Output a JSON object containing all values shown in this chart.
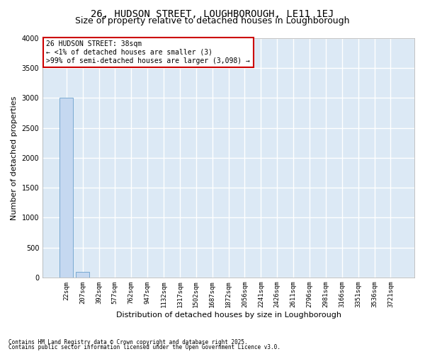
{
  "title": "26, HUDSON STREET, LOUGHBOROUGH, LE11 1EJ",
  "subtitle": "Size of property relative to detached houses in Loughborough",
  "xlabel": "Distribution of detached houses by size in Loughborough",
  "ylabel": "Number of detached properties",
  "annotation_lines": [
    "26 HUDSON STREET: 38sqm",
    "← <1% of detached houses are smaller (3)",
    ">99% of semi-detached houses are larger (3,098) →"
  ],
  "footer_lines": [
    "Contains HM Land Registry data © Crown copyright and database right 2025.",
    "Contains public sector information licensed under the Open Government Licence v3.0."
  ],
  "bar_color": "#c5d8f0",
  "bar_edge_color": "#6aa0cc",
  "background_color": "#dce9f5",
  "grid_color": "#ffffff",
  "annotation_box_color": "#cc0000",
  "fig_background": "#ffffff",
  "ylim": [
    0,
    4000
  ],
  "yticks": [
    0,
    500,
    1000,
    1500,
    2000,
    2500,
    3000,
    3500,
    4000
  ],
  "bin_labels": [
    "22sqm",
    "207sqm",
    "392sqm",
    "577sqm",
    "762sqm",
    "947sqm",
    "1132sqm",
    "1317sqm",
    "1502sqm",
    "1687sqm",
    "1872sqm",
    "2056sqm",
    "2241sqm",
    "2426sqm",
    "2611sqm",
    "2796sqm",
    "2981sqm",
    "3166sqm",
    "3351sqm",
    "3536sqm",
    "3721sqm"
  ],
  "bar_values": [
    3000,
    100,
    0,
    0,
    0,
    0,
    0,
    0,
    0,
    0,
    0,
    0,
    0,
    0,
    0,
    0,
    0,
    0,
    0,
    0,
    0
  ],
  "title_fontsize": 10,
  "subtitle_fontsize": 9,
  "tick_fontsize": 6.5,
  "label_fontsize": 8,
  "annotation_fontsize": 7,
  "footer_fontsize": 5.5
}
